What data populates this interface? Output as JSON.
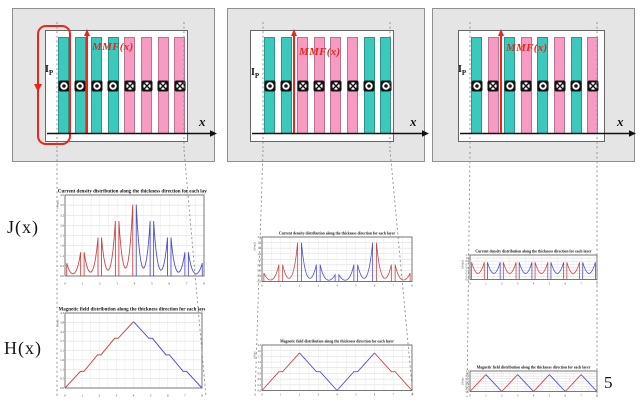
{
  "page": {
    "number": "5"
  },
  "colors": {
    "teal": "#3bc9bc",
    "pink": "#f79bc3",
    "red": "#e8251f",
    "curve_red": "#c84848",
    "curve_blue": "#5151c8",
    "panel_bg": "#e5e5e5",
    "panel_border": "#8f8f8f",
    "grid": "#d9d9d9",
    "dash": "#8c8c8c",
    "symbol": "#141414"
  },
  "row_labels": {
    "j": "J(x)",
    "h": "H(x)"
  },
  "panels": [
    {
      "mmf_label": "MMF(x)",
      "ip_base": "I",
      "ip_sub": "P",
      "x_label": "x",
      "layers": [
        "out",
        "out",
        "out",
        "out",
        "in",
        "in",
        "in",
        "in"
      ],
      "first_turn_highlight": true
    },
    {
      "mmf_label": "MMF(x)",
      "ip_base": "I",
      "ip_sub": "P",
      "x_label": "x",
      "layers": [
        "out",
        "out",
        "in",
        "in",
        "in",
        "in",
        "out",
        "out"
      ],
      "first_turn_highlight": false
    },
    {
      "mmf_label": "MMF(x)",
      "ip_base": "I",
      "ip_sub": "P",
      "x_label": "x",
      "layers": [
        "out",
        "in",
        "out",
        "in",
        "out",
        "in",
        "out",
        "in"
      ],
      "first_turn_highlight": false
    }
  ],
  "chart_data": [
    {
      "id": "left-current-density",
      "type": "line",
      "plot": "J",
      "column": 1,
      "title": "Current density distribution along the thickness direction for each layer",
      "unit": "(A/m2)",
      "xlim": [
        0,
        8
      ],
      "ylim": 4.2,
      "sharpness": 4,
      "x_ticks": [
        "0",
        "1",
        "2",
        "3",
        "4",
        "5",
        "6",
        "7",
        "8"
      ],
      "layers": [
        {
          "amps": [
            0.7,
            1.3
          ],
          "color": "red"
        },
        {
          "amps": [
            1.3,
            2.1
          ],
          "color": "red"
        },
        {
          "amps": [
            2.1,
            3.0
          ],
          "color": "red"
        },
        {
          "amps": [
            3.0,
            3.9
          ],
          "color": "red"
        },
        {
          "amps": [
            3.9,
            3.0
          ],
          "color": "blue"
        },
        {
          "amps": [
            3.0,
            2.1
          ],
          "color": "blue"
        },
        {
          "amps": [
            2.1,
            1.3
          ],
          "color": "blue"
        },
        {
          "amps": [
            1.3,
            0.7
          ],
          "color": "blue"
        }
      ]
    },
    {
      "id": "left-magnetic-field",
      "type": "line",
      "plot": "H",
      "column": 1,
      "title": "Magnetic field distribution along the thickness direction for each layer",
      "unit": "(A/m)",
      "xlim": [
        0,
        8
      ],
      "ylim": 4.3,
      "x_ticks": [
        "0",
        "1",
        "2",
        "3",
        "4",
        "5",
        "6",
        "7",
        "8"
      ],
      "segments": [
        {
          "color": "red",
          "points": [
            [
              0,
              0
            ],
            [
              0.9,
              1
            ],
            [
              1.1,
              1
            ],
            [
              1.9,
              2
            ],
            [
              2.1,
              2
            ],
            [
              2.9,
              3
            ],
            [
              3.1,
              3
            ],
            [
              4,
              4
            ]
          ]
        },
        {
          "color": "blue",
          "points": [
            [
              4,
              4
            ],
            [
              4.9,
              3
            ],
            [
              5.1,
              3
            ],
            [
              5.9,
              2
            ],
            [
              6.1,
              2
            ],
            [
              6.9,
              1
            ],
            [
              7.1,
              1
            ],
            [
              8,
              0
            ]
          ]
        }
      ]
    },
    {
      "id": "middle-current-density",
      "type": "line",
      "plot": "J",
      "column": 2,
      "title": "Current density distribution along the thickness direction for each layer",
      "unit": "(A/m2)",
      "xlim": [
        0,
        8
      ],
      "ylim": 2.5,
      "sharpness": 4,
      "x_ticks": [
        "0",
        "1",
        "2",
        "3",
        "4",
        "5",
        "6",
        "7",
        "8"
      ],
      "layers": [
        {
          "amps": [
            0.5,
            1.0
          ],
          "color": "red"
        },
        {
          "amps": [
            1.0,
            2.3
          ],
          "color": "red"
        },
        {
          "amps": [
            2.3,
            1.0
          ],
          "color": "blue"
        },
        {
          "amps": [
            1.0,
            0.4
          ],
          "color": "blue"
        },
        {
          "amps": [
            0.4,
            1.0
          ],
          "color": "blue"
        },
        {
          "amps": [
            1.0,
            2.3
          ],
          "color": "blue"
        },
        {
          "amps": [
            2.3,
            1.0
          ],
          "color": "red"
        },
        {
          "amps": [
            1.0,
            0.5
          ],
          "color": "red"
        }
      ]
    },
    {
      "id": "middle-magnetic-field",
      "type": "line",
      "plot": "H",
      "column": 2,
      "title": "Magnetic field distribution along the thickness direction for each layer",
      "unit": "(A/m)",
      "xlim": [
        0,
        8
      ],
      "ylim": 2.3,
      "x_ticks": [
        "0",
        "1",
        "2",
        "3",
        "4",
        "5",
        "6",
        "7",
        "8"
      ],
      "segments": [
        {
          "color": "red",
          "points": [
            [
              0,
              0
            ],
            [
              0.9,
              1
            ],
            [
              1.1,
              1
            ],
            [
              2,
              2
            ]
          ]
        },
        {
          "color": "blue",
          "points": [
            [
              2,
              2
            ],
            [
              2.9,
              1
            ],
            [
              3.1,
              1
            ],
            [
              4,
              0
            ],
            [
              4.9,
              1
            ],
            [
              5.1,
              1
            ],
            [
              6,
              2
            ]
          ]
        },
        {
          "color": "red",
          "points": [
            [
              6,
              2
            ],
            [
              6.9,
              1
            ],
            [
              7.1,
              1
            ],
            [
              8,
              0
            ]
          ]
        }
      ]
    },
    {
      "id": "right-current-density",
      "type": "line",
      "plot": "J",
      "column": 3,
      "title": "Current density distribution along the thickness direction for each layer",
      "unit": "(A/m2)",
      "xlim": [
        0,
        8
      ],
      "ylim": 1.15,
      "sharpness": 2.5,
      "x_ticks": [
        "0",
        "1",
        "2",
        "3",
        "4",
        "5",
        "6",
        "7",
        "8"
      ],
      "layers": [
        {
          "amps": [
            0.85,
            0.85
          ],
          "color": "red"
        },
        {
          "amps": [
            0.85,
            0.85
          ],
          "color": "blue"
        },
        {
          "amps": [
            0.85,
            0.85
          ],
          "color": "red"
        },
        {
          "amps": [
            0.85,
            0.85
          ],
          "color": "blue"
        },
        {
          "amps": [
            0.85,
            0.85
          ],
          "color": "red"
        },
        {
          "amps": [
            0.85,
            0.85
          ],
          "color": "blue"
        },
        {
          "amps": [
            0.85,
            0.85
          ],
          "color": "red"
        },
        {
          "amps": [
            0.85,
            0.85
          ],
          "color": "blue"
        }
      ]
    },
    {
      "id": "right-magnetic-field",
      "type": "line",
      "plot": "H",
      "column": 3,
      "title": "Magnetic field distribution along the thickness direction for each layer",
      "unit": "(A/m)",
      "xlim": [
        0,
        8
      ],
      "ylim": 1.15,
      "x_ticks": [
        "0",
        "1",
        "2",
        "3",
        "4",
        "5",
        "6",
        "7",
        "8"
      ],
      "segments": [
        {
          "color": "red",
          "points": [
            [
              0,
              0
            ],
            [
              1,
              1
            ]
          ]
        },
        {
          "color": "blue",
          "points": [
            [
              1,
              1
            ],
            [
              2,
              0
            ]
          ]
        },
        {
          "color": "red",
          "points": [
            [
              2,
              0
            ],
            [
              3,
              1
            ]
          ]
        },
        {
          "color": "blue",
          "points": [
            [
              3,
              1
            ],
            [
              4,
              0
            ]
          ]
        },
        {
          "color": "red",
          "points": [
            [
              4,
              0
            ],
            [
              5,
              1
            ]
          ]
        },
        {
          "color": "blue",
          "points": [
            [
              5,
              1
            ],
            [
              6,
              0
            ]
          ]
        },
        {
          "color": "red",
          "points": [
            [
              6,
              0
            ],
            [
              7,
              1
            ]
          ]
        },
        {
          "color": "blue",
          "points": [
            [
              7,
              1
            ],
            [
              8,
              0
            ]
          ]
        }
      ]
    }
  ]
}
